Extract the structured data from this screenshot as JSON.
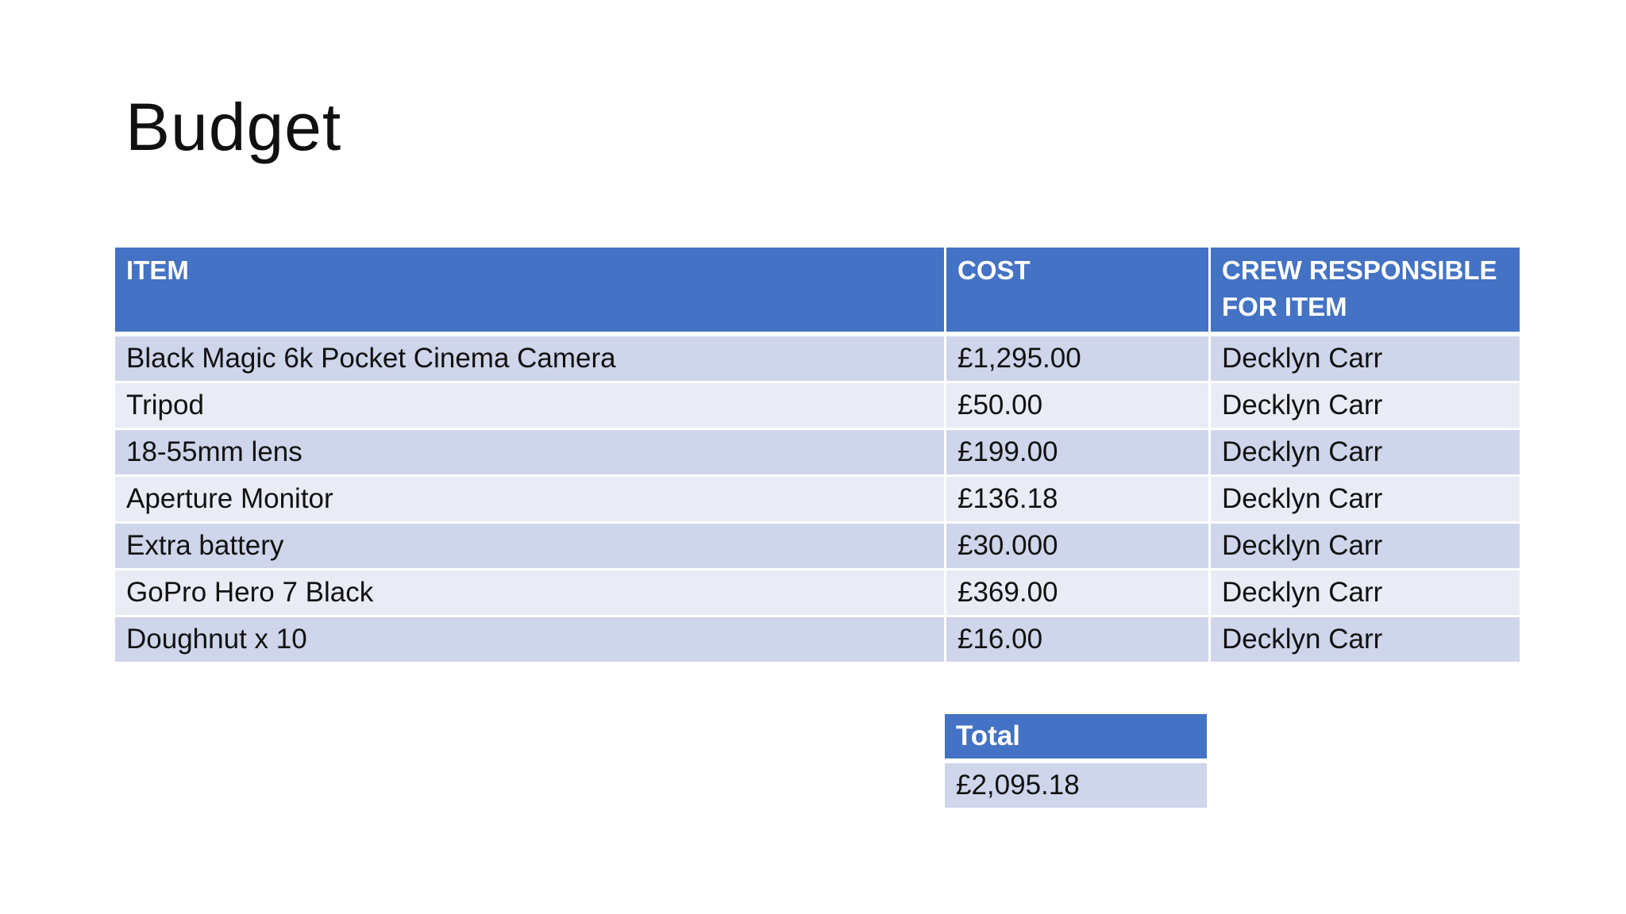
{
  "slide": {
    "title": "Budget"
  },
  "budget_table": {
    "headers": {
      "item": "ITEM",
      "cost": "COST",
      "crew": "CREW RESPONSIBLE FOR ITEM"
    },
    "rows": [
      {
        "item": "Black Magic 6k Pocket Cinema Camera",
        "cost": "£1,295.00",
        "crew": "Decklyn Carr"
      },
      {
        "item": "Tripod",
        "cost": "£50.00",
        "crew": "Decklyn Carr"
      },
      {
        "item": "18-55mm lens",
        "cost": "£199.00",
        "crew": "Decklyn Carr"
      },
      {
        "item": "Aperture Monitor",
        "cost": "£136.18",
        "crew": "Decklyn Carr"
      },
      {
        "item": "Extra battery",
        "cost": "£30.000",
        "crew": "Decklyn Carr"
      },
      {
        "item": "GoPro Hero 7 Black",
        "cost": "£369.00",
        "crew": "Decklyn Carr"
      },
      {
        "item": "Doughnut x 10",
        "cost": "£16.00",
        "crew": "Decklyn Carr"
      }
    ]
  },
  "total_table": {
    "header": "Total",
    "value": "£2,095.18"
  },
  "colors": {
    "header_bg": "#4472c4",
    "row_dark": "#cfd5ea",
    "row_light": "#e9ebf5"
  }
}
